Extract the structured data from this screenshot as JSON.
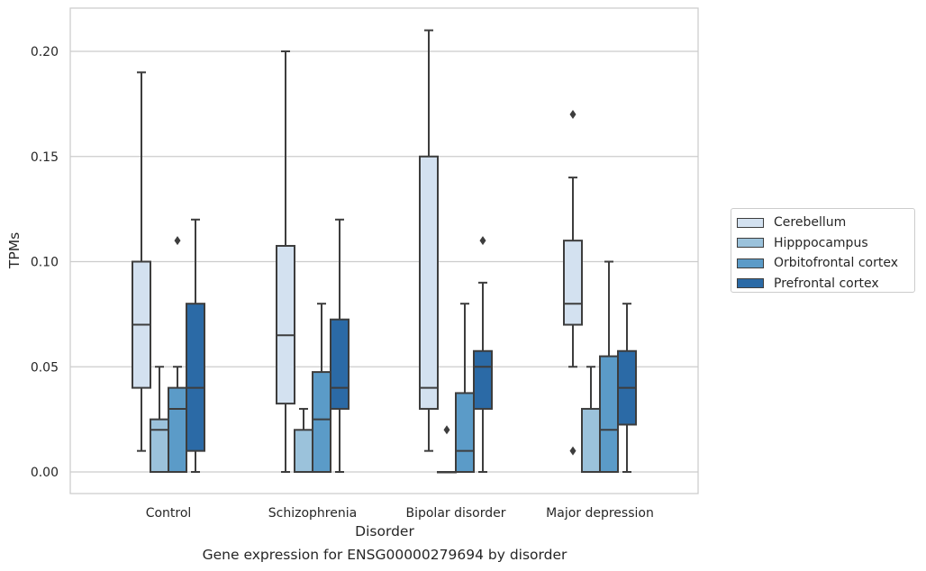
{
  "chart_data": {
    "type": "box",
    "categories": [
      "Control",
      "Schizophrenia",
      "Bipolar disorder",
      "Major depression"
    ],
    "xlabel": "Disorder",
    "ylabel": "TPMs",
    "footnote": "Gene expression for ENSG00000279694 by disorder",
    "ylim": [
      -0.01,
      0.22
    ],
    "yticks": [
      "0.00",
      "0.05",
      "0.10",
      "0.15",
      "0.20"
    ],
    "grid": "horizontal",
    "legend_position": "right",
    "series": [
      {
        "name": "Cerebellum",
        "color": "#d3e1f0",
        "boxes": [
          {
            "whisker_low": 0.01,
            "q1": 0.04,
            "median": 0.07,
            "q3": 0.1,
            "whisker_high": 0.19,
            "outliers": []
          },
          {
            "whisker_low": 0.0,
            "q1": 0.0325,
            "median": 0.065,
            "q3": 0.1075,
            "whisker_high": 0.2,
            "outliers": []
          },
          {
            "whisker_low": 0.01,
            "q1": 0.03,
            "median": 0.04,
            "q3": 0.15,
            "whisker_high": 0.21,
            "outliers": []
          },
          {
            "whisker_low": 0.05,
            "q1": 0.07,
            "median": 0.08,
            "q3": 0.11,
            "whisker_high": 0.14,
            "outliers": [
              0.17,
              0.01
            ]
          }
        ]
      },
      {
        "name": "Hipppocampus",
        "color": "#9bc2db",
        "boxes": [
          {
            "whisker_low": 0.0,
            "q1": 0.0,
            "median": 0.02,
            "q3": 0.025,
            "whisker_high": 0.05,
            "outliers": []
          },
          {
            "whisker_low": 0.0,
            "q1": 0.0,
            "median": 0.0,
            "q3": 0.02,
            "whisker_high": 0.03,
            "outliers": []
          },
          {
            "whisker_low": 0.0,
            "q1": 0.0,
            "median": 0.0,
            "q3": 0.0,
            "whisker_high": 0.0,
            "outliers": [
              0.02
            ]
          },
          {
            "whisker_low": 0.0,
            "q1": 0.0,
            "median": 0.0,
            "q3": 0.03,
            "whisker_high": 0.05,
            "outliers": []
          }
        ]
      },
      {
        "name": "Orbitofrontal cortex",
        "color": "#5b9bc8",
        "boxes": [
          {
            "whisker_low": 0.0,
            "q1": 0.0,
            "median": 0.03,
            "q3": 0.04,
            "whisker_high": 0.05,
            "outliers": [
              0.11
            ]
          },
          {
            "whisker_low": 0.0,
            "q1": 0.0,
            "median": 0.025,
            "q3": 0.0475,
            "whisker_high": 0.08,
            "outliers": []
          },
          {
            "whisker_low": 0.0,
            "q1": 0.0,
            "median": 0.01,
            "q3": 0.0375,
            "whisker_high": 0.08,
            "outliers": []
          },
          {
            "whisker_low": 0.0,
            "q1": 0.0,
            "median": 0.02,
            "q3": 0.055,
            "whisker_high": 0.1,
            "outliers": []
          }
        ]
      },
      {
        "name": "Prefrontal cortex",
        "color": "#2b6aa6",
        "boxes": [
          {
            "whisker_low": 0.0,
            "q1": 0.01,
            "median": 0.04,
            "q3": 0.08,
            "whisker_high": 0.12,
            "outliers": []
          },
          {
            "whisker_low": 0.0,
            "q1": 0.03,
            "median": 0.04,
            "q3": 0.0725,
            "whisker_high": 0.12,
            "outliers": []
          },
          {
            "whisker_low": 0.0,
            "q1": 0.03,
            "median": 0.05,
            "q3": 0.0575,
            "whisker_high": 0.09,
            "outliers": [
              0.11
            ]
          },
          {
            "whisker_low": 0.0,
            "q1": 0.0225,
            "median": 0.04,
            "q3": 0.0575,
            "whisker_high": 0.08,
            "outliers": []
          }
        ]
      }
    ]
  }
}
